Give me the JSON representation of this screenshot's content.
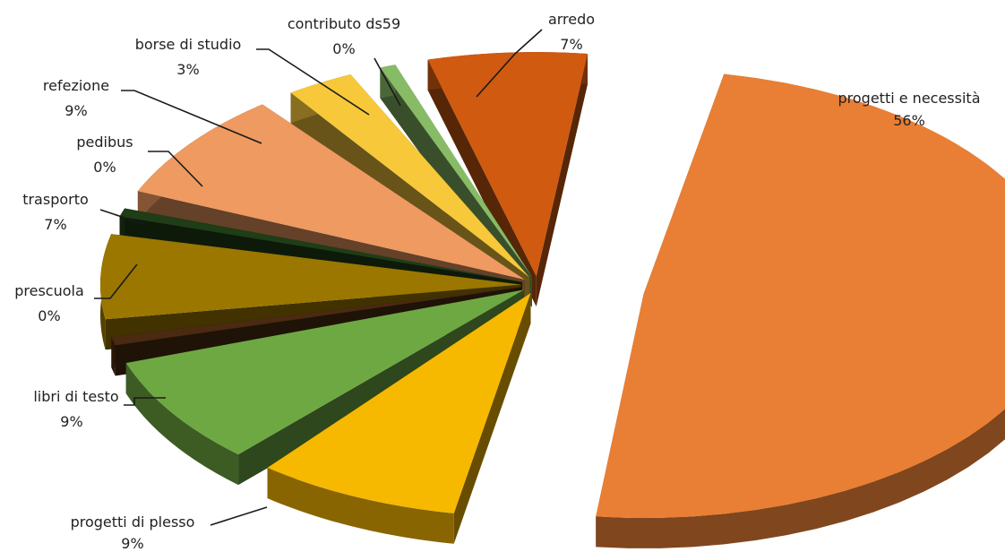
{
  "chart_data": {
    "type": "pie",
    "title": "",
    "slices": [
      {
        "label": "progetti e necessità",
        "value": 56,
        "value_label": "56%",
        "color": "#E97F34"
      },
      {
        "label": "progetti di plesso",
        "value": 9,
        "value_label": "9%",
        "color": "#F7B800"
      },
      {
        "label": "libri di testo",
        "value": 9,
        "value_label": "9%",
        "color": "#6EA842"
      },
      {
        "label": "prescuola",
        "value": 0,
        "value_label": "0%",
        "color": "#4A2A10"
      },
      {
        "label": "trasporto",
        "value": 7,
        "value_label": "7%",
        "color": "#9B7700"
      },
      {
        "label": "pedibus",
        "value": 0,
        "value_label": "0%",
        "color": "#1F3D17"
      },
      {
        "label": "refezione",
        "value": 9,
        "value_label": "9%",
        "color": "#EE9A60"
      },
      {
        "label": "borse di studio",
        "value": 3,
        "value_label": "3%",
        "color": "#F7C83A"
      },
      {
        "label": "contributo ds59",
        "value": 0,
        "value_label": "0%",
        "color": "#88BB66"
      },
      {
        "label": "arredo",
        "value": 7,
        "value_label": "7%",
        "color": "#D05A10"
      }
    ]
  }
}
